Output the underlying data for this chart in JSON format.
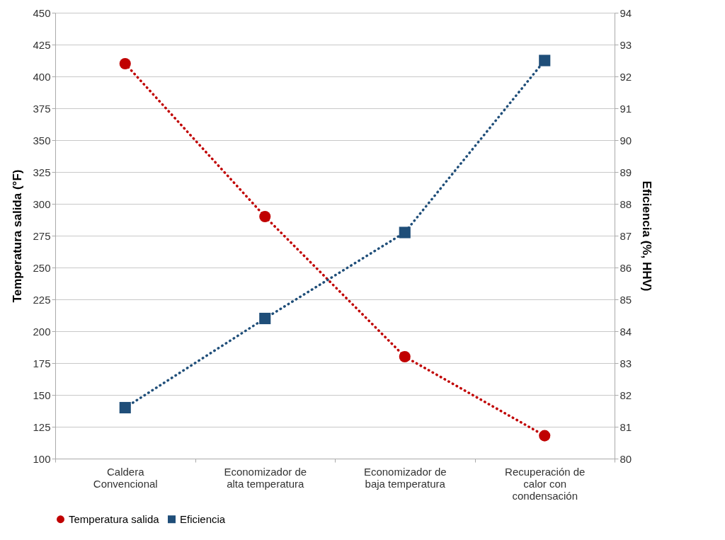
{
  "chart_data": {
    "type": "line",
    "categories": [
      "Caldera Convencional",
      "Economizador de alta temperatura",
      "Economizador de baja temperatura",
      "Recuperación de calor con condensación"
    ],
    "series": [
      {
        "name": "Temperatura salida",
        "color": "#c00000",
        "marker": "circle",
        "values": [
          410,
          290,
          180,
          118
        ]
      },
      {
        "name": "Eficiencia",
        "color": "#1f4e79",
        "marker": "square",
        "axis": "y2",
        "values": [
          81.6,
          84.4,
          87.1,
          92.5
        ]
      }
    ],
    "ylabel": "Temperatura salida  (°F)",
    "y2label": "Eficiencia  (%, HHV)",
    "ylim": [
      100,
      450
    ],
    "yticks": [
      100,
      125,
      150,
      175,
      200,
      225,
      250,
      275,
      300,
      325,
      350,
      375,
      400,
      425,
      450
    ],
    "y2lim": [
      80,
      94
    ],
    "y2ticks": [
      80,
      81,
      82,
      83,
      84,
      85,
      86,
      87,
      88,
      89,
      90,
      91,
      92,
      93,
      94
    ],
    "grid": "y",
    "legend": "bottom",
    "line_style": "dotted"
  }
}
